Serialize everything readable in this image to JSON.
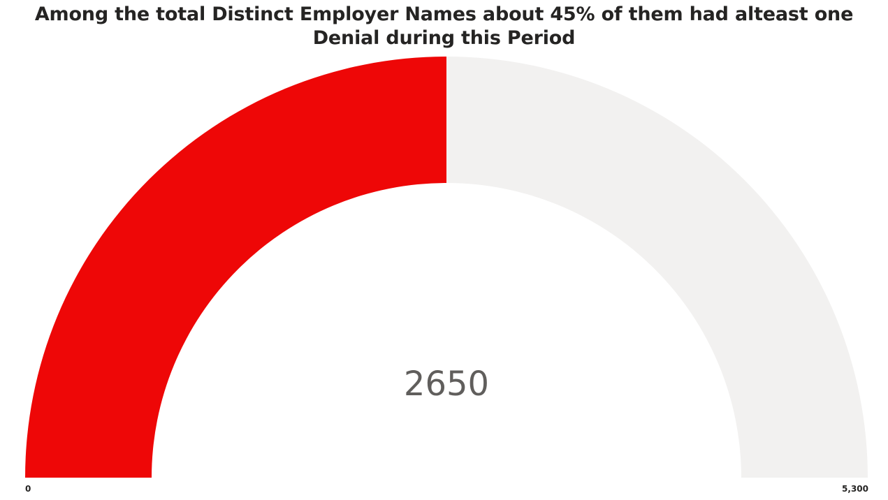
{
  "chart_data": {
    "type": "gauge",
    "title": "Among the total Distinct Employer Names about 45% of them had alteast one Denial during this Period",
    "value": 2650,
    "min": 0,
    "max": 5300,
    "value_label": "2650",
    "min_label": "0",
    "max_label": "5,300",
    "colors": {
      "fill": "#ee0707",
      "track": "#f2f1f0",
      "value_text": "#605e5c",
      "axis_text": "#252423"
    }
  }
}
